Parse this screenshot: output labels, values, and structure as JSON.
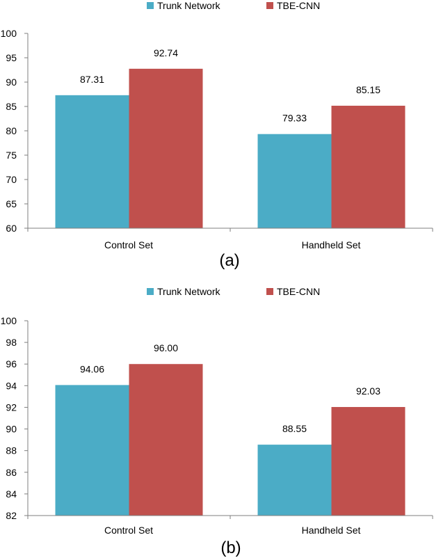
{
  "legend": {
    "series_a": "Trunk Network",
    "series_b": "TBE-CNN"
  },
  "colors": {
    "trunk": "#4BACC6",
    "tbe": "#C0504D",
    "axis": "#7f7f7f",
    "text": "#000000"
  },
  "chart_data": [
    {
      "type": "bar",
      "caption": "(a)",
      "categories": [
        "Control Set",
        "Handheld Set"
      ],
      "series": [
        {
          "name": "Trunk Network",
          "values": [
            87.31,
            79.33
          ],
          "labels": [
            "87.31",
            "79.33"
          ]
        },
        {
          "name": "TBE-CNN",
          "values": [
            92.74,
            85.15
          ],
          "labels": [
            "92.74",
            "85.15"
          ]
        }
      ],
      "ylim": [
        60,
        100
      ],
      "yticks": [
        "60",
        "65",
        "70",
        "75",
        "80",
        "85",
        "90",
        "95",
        "100"
      ],
      "ytick_values": [
        60,
        65,
        70,
        75,
        80,
        85,
        90,
        95,
        100
      ],
      "legend_position": "top-center",
      "grid": false
    },
    {
      "type": "bar",
      "caption": "(b)",
      "categories": [
        "Control Set",
        "Handheld Set"
      ],
      "series": [
        {
          "name": "Trunk Network",
          "values": [
            94.06,
            88.55
          ],
          "labels": [
            "94.06",
            "88.55"
          ]
        },
        {
          "name": "TBE-CNN",
          "values": [
            96.0,
            92.03
          ],
          "labels": [
            "96.00",
            "92.03"
          ]
        }
      ],
      "ylim": [
        82,
        100
      ],
      "yticks": [
        "82",
        "84",
        "86",
        "88",
        "90",
        "92",
        "94",
        "96",
        "98",
        "100"
      ],
      "ytick_values": [
        82,
        84,
        86,
        88,
        90,
        92,
        94,
        96,
        98,
        100
      ],
      "legend_position": "top-center",
      "grid": false
    }
  ]
}
